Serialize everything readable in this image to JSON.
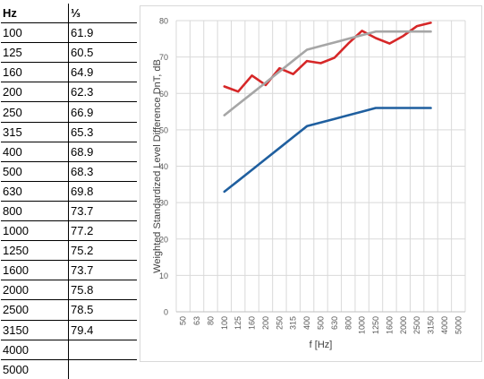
{
  "table": {
    "headers": [
      "Hz",
      "⅓"
    ],
    "rows": [
      [
        "100",
        "61.9"
      ],
      [
        "125",
        "60.5"
      ],
      [
        "160",
        "64.9"
      ],
      [
        "200",
        "62.3"
      ],
      [
        "250",
        "66.9"
      ],
      [
        "315",
        "65.3"
      ],
      [
        "400",
        "68.9"
      ],
      [
        "500",
        "68.3"
      ],
      [
        "630",
        "69.8"
      ],
      [
        "800",
        "73.7"
      ],
      [
        "1000",
        "77.2"
      ],
      [
        "1250",
        "75.2"
      ],
      [
        "1600",
        "73.7"
      ],
      [
        "2000",
        "75.8"
      ],
      [
        "2500",
        "78.5"
      ],
      [
        "3150",
        "79.4"
      ],
      [
        "4000",
        ""
      ],
      [
        "5000",
        ""
      ]
    ]
  },
  "chart_data": {
    "type": "line",
    "xlabel": "f [Hz]",
    "ylabel": "Weighted Standardized Level Difference DnT, dB",
    "categories": [
      "50",
      "63",
      "80",
      "100",
      "125",
      "160",
      "200",
      "250",
      "315",
      "400",
      "500",
      "630",
      "800",
      "1000",
      "1250",
      "1600",
      "2000",
      "2500",
      "3150",
      "4000",
      "5000"
    ],
    "ylim": [
      0,
      80
    ],
    "yticks": [
      0,
      10,
      20,
      30,
      40,
      50,
      60,
      70,
      80
    ],
    "grid": true,
    "series": [
      {
        "color": "#d62728",
        "x": [
          "100",
          "125",
          "160",
          "200",
          "250",
          "315",
          "400",
          "500",
          "630",
          "800",
          "1000",
          "1250",
          "1600",
          "2000",
          "2500",
          "3150"
        ],
        "values": [
          61.9,
          60.5,
          64.9,
          62.3,
          66.9,
          65.3,
          68.9,
          68.3,
          69.8,
          73.7,
          77.2,
          75.2,
          73.7,
          75.8,
          78.5,
          79.4
        ]
      },
      {
        "color": "#a6a6a6",
        "x": [
          "100",
          "125",
          "160",
          "200",
          "250",
          "315",
          "400",
          "500",
          "630",
          "800",
          "1000",
          "1250",
          "1600",
          "2000",
          "2500",
          "3150"
        ],
        "values": [
          54,
          57,
          60,
          63,
          66,
          69,
          72,
          73,
          74,
          75,
          76,
          77,
          77,
          77,
          77,
          77
        ]
      },
      {
        "color": "#1f5f9f",
        "x": [
          "100",
          "125",
          "160",
          "200",
          "250",
          "315",
          "400",
          "500",
          "630",
          "800",
          "1000",
          "1250",
          "1600",
          "2000",
          "2500",
          "3150"
        ],
        "values": [
          33,
          36,
          39,
          42,
          45,
          48,
          51,
          52,
          53,
          54,
          55,
          56,
          56,
          56,
          56,
          56
        ]
      }
    ]
  }
}
